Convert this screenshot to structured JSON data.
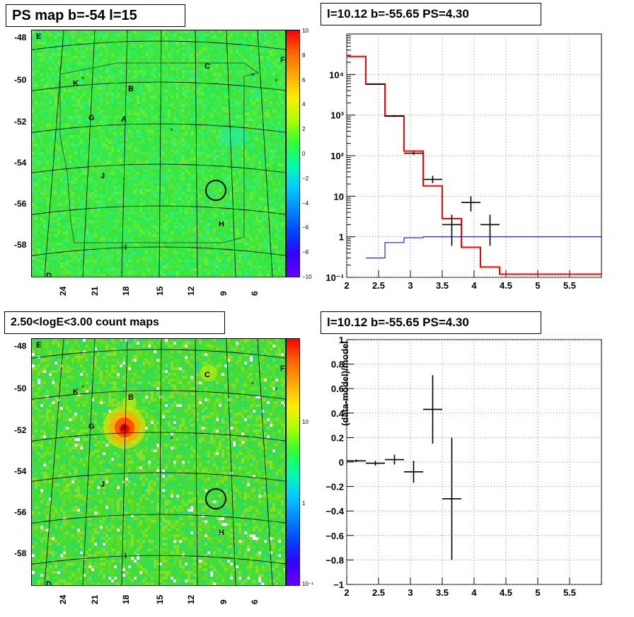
{
  "titles": {
    "tl": "PS map b=-54 l=15",
    "tr": "l=10.12 b=-55.65 PS=4.30",
    "bl": "2.50<logE<3.00 count maps",
    "br": "l=10.12 b=-55.65 PS=4.30"
  },
  "map_axes": {
    "lat_ticks": [
      "-48",
      "-50",
      "-52",
      "-54",
      "-56",
      "-58"
    ],
    "lon_ticks": [
      "24",
      "21",
      "18",
      "15",
      "12",
      "9",
      "6"
    ]
  },
  "regions": [
    {
      "label": "E"
    },
    {
      "label": "C"
    },
    {
      "label": "F"
    },
    {
      "label": "K"
    },
    {
      "label": "B"
    },
    {
      "label": "G"
    },
    {
      "label": "A"
    },
    {
      "label": "J"
    },
    {
      "label": "H"
    },
    {
      "label": "I"
    },
    {
      "label": "D"
    }
  ],
  "colorbar_top": {
    "ticks": [
      "10",
      "8",
      "6",
      "4",
      "2",
      "0",
      "−2",
      "−4",
      "−6",
      "−8",
      "−10"
    ],
    "colors": [
      "#ff0000",
      "#ff6600",
      "#ffaa00",
      "#ffee00",
      "#aaff00",
      "#33ff33",
      "#00ffaa",
      "#00ccff",
      "#0088ff",
      "#0044ff",
      "#3300ff",
      "#6600ff"
    ]
  },
  "colorbar_bottom": {
    "ticks": [
      "10",
      "1",
      "10⁻¹"
    ],
    "colors": [
      "#ff0000",
      "#ff6600",
      "#ffaa00",
      "#ffee00",
      "#aaff00",
      "#33ff33",
      "#00ffaa",
      "#00ccff",
      "#0088ff",
      "#0044ff",
      "#3300ff",
      "#6600ff"
    ]
  },
  "chart_data": [
    {
      "type": "line",
      "xlim": [
        2,
        6
      ],
      "ylim_log10": [
        -1,
        5
      ],
      "x_ticks": [
        "2",
        "2.5",
        "3",
        "3.5",
        "4",
        "4.5",
        "5",
        "5.5"
      ],
      "y_ticks": [
        "10⁻¹",
        "1",
        "10",
        "10²",
        "10³",
        "10⁴"
      ],
      "log_y": true,
      "grid": true,
      "series": [
        {
          "color": "#ff0000",
          "style": "step",
          "bins": [
            [
              2.0,
              2.3,
              28000
            ],
            [
              2.3,
              2.6,
              5800
            ],
            [
              2.6,
              2.9,
              950
            ],
            [
              2.9,
              3.2,
              130
            ],
            [
              3.2,
              3.5,
              18
            ],
            [
              3.5,
              3.8,
              2.8
            ],
            [
              3.8,
              4.1,
              0.55
            ],
            [
              4.1,
              4.4,
              0.18
            ],
            [
              4.4,
              6.0,
              0.12
            ]
          ]
        },
        {
          "color": "#0000cc",
          "style": "step",
          "bins": [
            [
              2.3,
              2.6,
              0.3
            ],
            [
              2.6,
              2.9,
              0.72
            ],
            [
              2.9,
              3.2,
              0.95
            ],
            [
              3.2,
              6.0,
              1.0
            ]
          ]
        },
        {
          "color": "#000000",
          "style": "errorbars",
          "points": [
            {
              "x": 2.45,
              "xerr": 0.15,
              "y": 5800,
              "ylo": 5600,
              "yhi": 6000
            },
            {
              "x": 2.75,
              "xerr": 0.15,
              "y": 950,
              "ylo": 900,
              "yhi": 1000
            },
            {
              "x": 3.05,
              "xerr": 0.15,
              "y": 115,
              "ylo": 105,
              "yhi": 125
            },
            {
              "x": 3.35,
              "xerr": 0.15,
              "y": 26,
              "ylo": 21,
              "yhi": 32
            },
            {
              "x": 3.65,
              "xerr": 0.15,
              "y": 2.0,
              "ylo": 0.6,
              "yhi": 3.5
            },
            {
              "x": 3.95,
              "xerr": 0.15,
              "y": 7.0,
              "ylo": 4.2,
              "yhi": 10.0
            },
            {
              "x": 4.25,
              "xerr": 0.15,
              "y": 2.0,
              "ylo": 0.6,
              "yhi": 3.5
            }
          ]
        }
      ]
    },
    {
      "type": "scatter",
      "xlim": [
        2,
        6
      ],
      "ylim": [
        -1,
        1
      ],
      "ylabel": "(data-model)/model",
      "x_ticks": [
        "2",
        "2.5",
        "3",
        "3.5",
        "4",
        "4.5",
        "5",
        "5.5"
      ],
      "y_ticks": [
        "1",
        "0.8",
        "0.6",
        "0.4",
        "0.2",
        "0",
        "−0.2",
        "−0.4",
        "−0.6",
        "−0.8",
        "−1"
      ],
      "grid": true,
      "points": [
        {
          "x": 2.15,
          "xerr": 0.15,
          "y": 0.01,
          "ylo": 0.0,
          "yhi": 0.02
        },
        {
          "x": 2.45,
          "xerr": 0.15,
          "y": -0.01,
          "ylo": -0.03,
          "yhi": 0.01
        },
        {
          "x": 2.75,
          "xerr": 0.15,
          "y": 0.02,
          "ylo": -0.02,
          "yhi": 0.06
        },
        {
          "x": 3.05,
          "xerr": 0.15,
          "y": -0.08,
          "ylo": -0.17,
          "yhi": 0.01
        },
        {
          "x": 3.35,
          "xerr": 0.15,
          "y": 0.43,
          "ylo": 0.15,
          "yhi": 0.71
        },
        {
          "x": 3.65,
          "xerr": 0.15,
          "y": -0.3,
          "ylo": -0.8,
          "yhi": 0.2
        }
      ]
    }
  ]
}
